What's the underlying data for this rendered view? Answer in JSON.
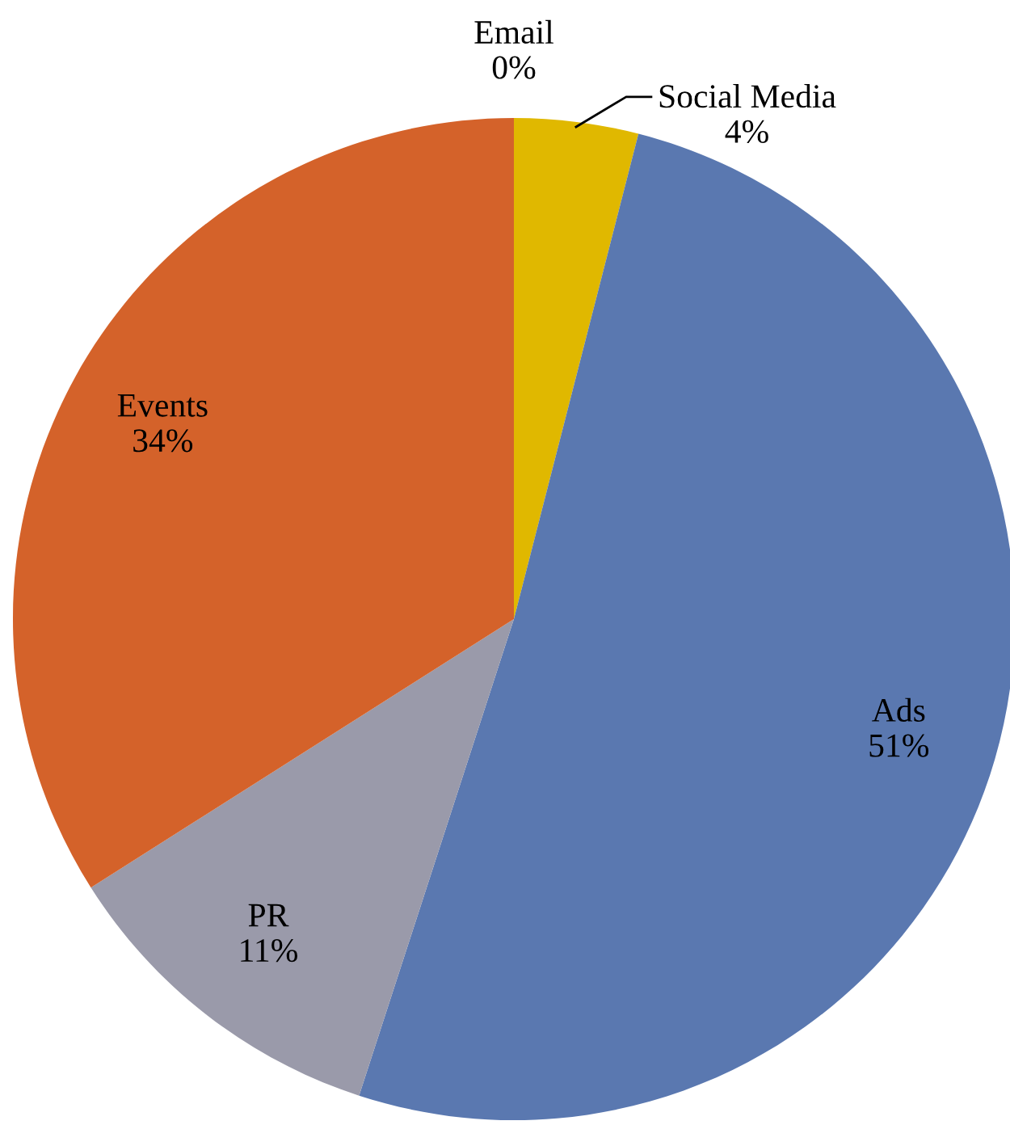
{
  "chart_data": {
    "type": "pie",
    "categories": [
      "Email",
      "Social Media",
      "Ads",
      "PR",
      "Events"
    ],
    "values": [
      0,
      4,
      51,
      11,
      34
    ],
    "colors": [
      "#7f8fb5",
      "#e0b800",
      "#5a78b0",
      "#9a9aaa",
      "#d4622a"
    ],
    "value_labels": [
      "0%",
      "4%",
      "51%",
      "11%",
      "34%"
    ]
  }
}
